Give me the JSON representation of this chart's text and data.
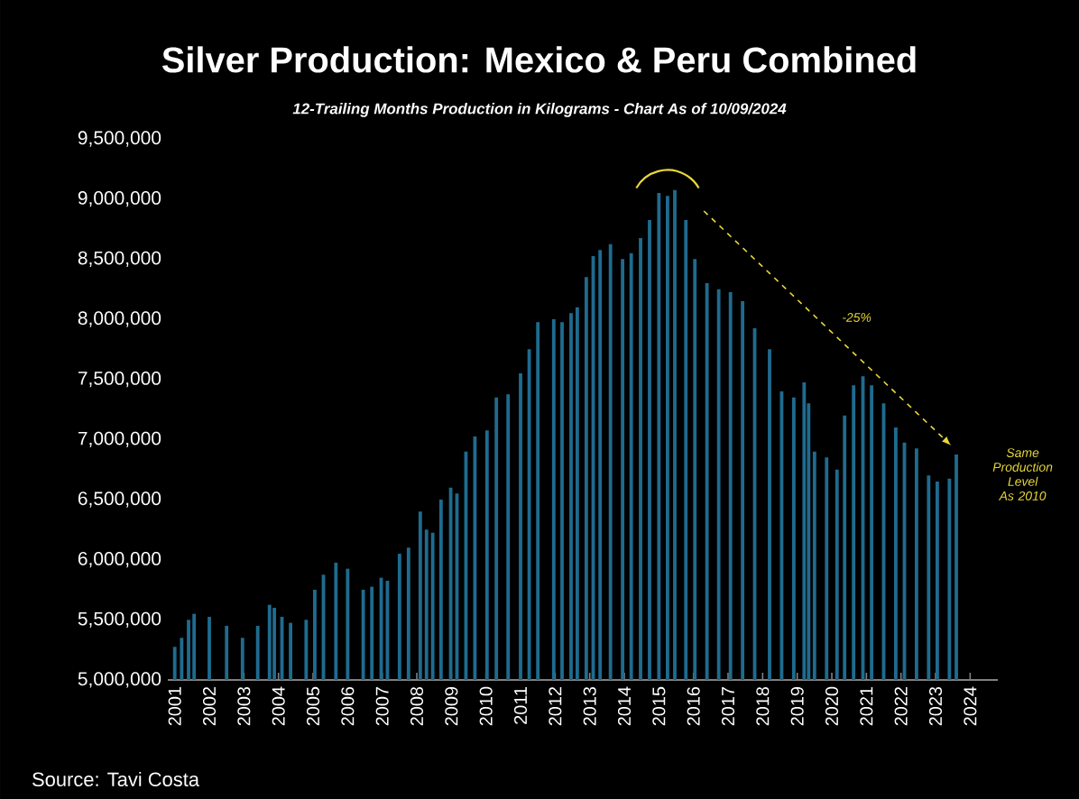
{
  "chart_data": {
    "type": "bar",
    "title": "Silver Production: Mexico & Peru Combined",
    "subtitle": "12-Trailing Months Production in Kilograms - Chart As of 10/09/2024",
    "x": [
      2001.0,
      2001.2,
      2001.4,
      2001.56,
      2002.0,
      2002.5,
      2002.96,
      2003.4,
      2003.74,
      2003.88,
      2004.1,
      2004.35,
      2004.8,
      2005.05,
      2005.3,
      2005.66,
      2006.0,
      2006.45,
      2006.7,
      2006.97,
      2007.15,
      2007.5,
      2007.76,
      2008.1,
      2008.28,
      2008.46,
      2008.7,
      2008.98,
      2009.16,
      2009.42,
      2009.68,
      2010.03,
      2010.3,
      2010.64,
      2011.0,
      2011.25,
      2011.5,
      2011.96,
      2012.2,
      2012.46,
      2012.64,
      2012.9,
      2013.1,
      2013.3,
      2013.6,
      2013.95,
      2014.2,
      2014.47,
      2014.73,
      2015.0,
      2015.25,
      2015.46,
      2015.78,
      2016.04,
      2016.39,
      2016.73,
      2017.07,
      2017.42,
      2017.77,
      2018.2,
      2018.55,
      2018.9,
      2019.2,
      2019.33,
      2019.5,
      2019.85,
      2020.15,
      2020.37,
      2020.63,
      2020.9,
      2021.15,
      2021.5,
      2021.85,
      2022.1,
      2022.45,
      2022.8,
      2023.05,
      2023.4,
      2023.6
    ],
    "values": [
      5275000,
      5350000,
      5500000,
      5550000,
      5525000,
      5450000,
      5350000,
      5450000,
      5625000,
      5600000,
      5525000,
      5475000,
      5500000,
      5750000,
      5875000,
      5975000,
      5925000,
      5750000,
      5775000,
      5850000,
      5825000,
      6050000,
      6100000,
      6400000,
      6250000,
      6225000,
      6500000,
      6600000,
      6550000,
      6900000,
      7025000,
      7075000,
      7350000,
      7375000,
      7550000,
      7750000,
      7975000,
      8000000,
      7975000,
      8050000,
      8100000,
      8350000,
      8525000,
      8575000,
      8625000,
      8500000,
      8550000,
      8675000,
      8825000,
      9050000,
      9025000,
      9075000,
      8825000,
      8500000,
      8300000,
      8250000,
      8225000,
      8150000,
      7925000,
      7750000,
      7400000,
      7350000,
      7475000,
      7300000,
      6900000,
      6850000,
      6750000,
      7200000,
      7450000,
      7525000,
      7450000,
      7300000,
      7100000,
      6975000,
      6925000,
      6700000,
      6650000,
      6675000,
      6875000
    ],
    "color": "#1f6b8f",
    "xlim": [
      2000.8,
      2024.8
    ],
    "xticks": [
      2001,
      2002,
      2003,
      2004,
      2005,
      2006,
      2007,
      2008,
      2009,
      2010,
      2011,
      2012,
      2013,
      2014,
      2015,
      2016,
      2017,
      2018,
      2019,
      2020,
      2021,
      2022,
      2023,
      2024
    ],
    "ylim": [
      5000000,
      9500000
    ],
    "yticks": [
      {
        "value": 5000000,
        "label": "5,000,000"
      },
      {
        "value": 5500000,
        "label": "5,500,000"
      },
      {
        "value": 6000000,
        "label": "6,000,000"
      },
      {
        "value": 6500000,
        "label": "6,500,000"
      },
      {
        "value": 7000000,
        "label": "7,000,000"
      },
      {
        "value": 7500000,
        "label": "7,500,000"
      },
      {
        "value": 8000000,
        "label": "8,000,000"
      },
      {
        "value": 8500000,
        "label": "8,500,000"
      },
      {
        "value": 9000000,
        "label": "9,000,000"
      },
      {
        "value": 9500000,
        "label": "9,500,000"
      }
    ],
    "annotations": [
      "-25%",
      "Same Production Level As 2010",
      "Source: Tavi Costa"
    ]
  }
}
